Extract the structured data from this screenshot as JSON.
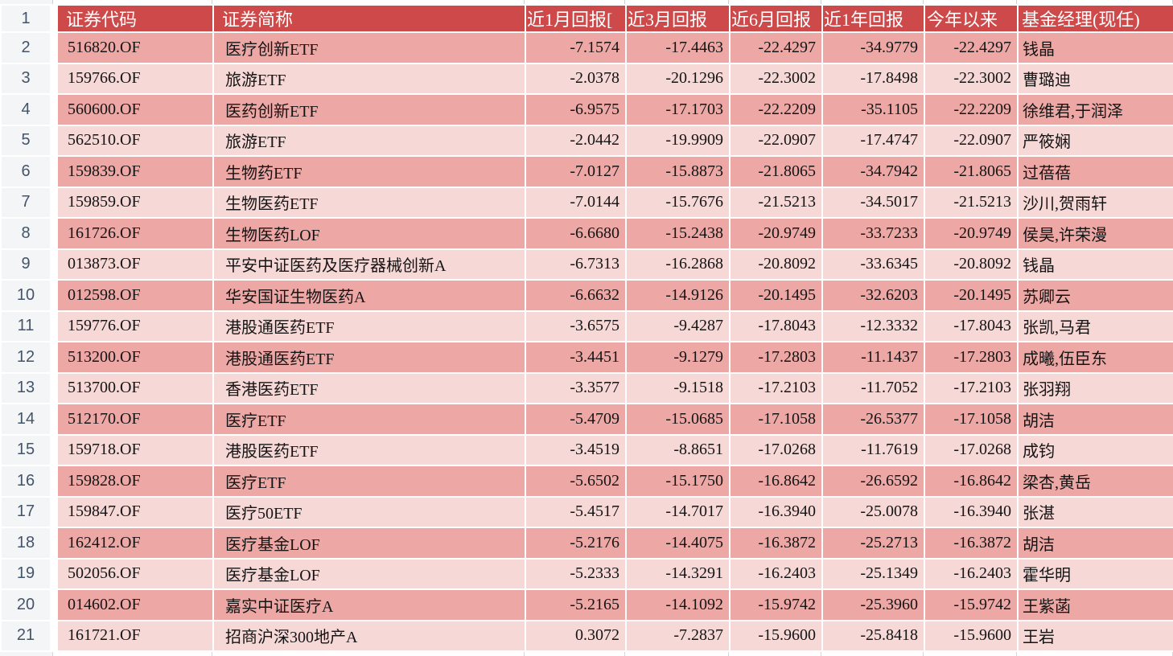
{
  "colors": {
    "header_bg": "#CE4A4A",
    "header_text": "#FFFFFF",
    "row_dark": "#EDA8A6",
    "row_light": "#F6D8D7",
    "rownum_bg": "#F4F5F6",
    "rownum_text": "#44546A",
    "gridline": "#FFFFFF"
  },
  "table": {
    "corner_row_number": "1",
    "columns": [
      {
        "key": "code",
        "label": "证券代码"
      },
      {
        "key": "name",
        "label": "证券简称"
      },
      {
        "key": "r1m",
        "label": "近1月回报["
      },
      {
        "key": "r3m",
        "label": "近3月回报"
      },
      {
        "key": "r6m",
        "label": "近6月回报"
      },
      {
        "key": "r1y",
        "label": "近1年回报"
      },
      {
        "key": "ytd",
        "label": "今年以来"
      },
      {
        "key": "manager",
        "label": "基金经理(现任)"
      }
    ],
    "rows": [
      {
        "row_number": "2",
        "code": "516820.OF",
        "name": "医疗创新ETF",
        "r1m": "-7.1574",
        "r3m": "-17.4463",
        "r6m": "-22.4297",
        "r1y": "-34.9779",
        "ytd": "-22.4297",
        "manager": "钱晶"
      },
      {
        "row_number": "3",
        "code": "159766.OF",
        "name": "旅游ETF",
        "r1m": "-2.0378",
        "r3m": "-20.1296",
        "r6m": "-22.3002",
        "r1y": "-17.8498",
        "ytd": "-22.3002",
        "manager": "曹璐迪"
      },
      {
        "row_number": "4",
        "code": "560600.OF",
        "name": "医药创新ETF",
        "r1m": "-6.9575",
        "r3m": "-17.1703",
        "r6m": "-22.2209",
        "r1y": "-35.1105",
        "ytd": "-22.2209",
        "manager": "徐维君,于润泽"
      },
      {
        "row_number": "5",
        "code": "562510.OF",
        "name": "旅游ETF",
        "r1m": "-2.0442",
        "r3m": "-19.9909",
        "r6m": "-22.0907",
        "r1y": "-17.4747",
        "ytd": "-22.0907",
        "manager": "严筱娴"
      },
      {
        "row_number": "6",
        "code": "159839.OF",
        "name": "生物药ETF",
        "r1m": "-7.0127",
        "r3m": "-15.8873",
        "r6m": "-21.8065",
        "r1y": "-34.7942",
        "ytd": "-21.8065",
        "manager": "过蓓蓓"
      },
      {
        "row_number": "7",
        "code": "159859.OF",
        "name": "生物医药ETF",
        "r1m": "-7.0144",
        "r3m": "-15.7676",
        "r6m": "-21.5213",
        "r1y": "-34.5017",
        "ytd": "-21.5213",
        "manager": "沙川,贺雨轩"
      },
      {
        "row_number": "8",
        "code": "161726.OF",
        "name": "生物医药LOF",
        "r1m": "-6.6680",
        "r3m": "-15.2438",
        "r6m": "-20.9749",
        "r1y": "-33.7233",
        "ytd": "-20.9749",
        "manager": "侯昊,许荣漫"
      },
      {
        "row_number": "9",
        "code": "013873.OF",
        "name": "平安中证医药及医疗器械创新A",
        "r1m": "-6.7313",
        "r3m": "-16.2868",
        "r6m": "-20.8092",
        "r1y": "-33.6345",
        "ytd": "-20.8092",
        "manager": "钱晶"
      },
      {
        "row_number": "10",
        "code": "012598.OF",
        "name": "华安国证生物医药A",
        "r1m": "-6.6632",
        "r3m": "-14.9126",
        "r6m": "-20.1495",
        "r1y": "-32.6203",
        "ytd": "-20.1495",
        "manager": "苏卿云"
      },
      {
        "row_number": "11",
        "code": "159776.OF",
        "name": "港股通医药ETF",
        "r1m": "-3.6575",
        "r3m": "-9.4287",
        "r6m": "-17.8043",
        "r1y": "-12.3332",
        "ytd": "-17.8043",
        "manager": "张凯,马君"
      },
      {
        "row_number": "12",
        "code": "513200.OF",
        "name": "港股通医药ETF",
        "r1m": "-3.4451",
        "r3m": "-9.1279",
        "r6m": "-17.2803",
        "r1y": "-11.1437",
        "ytd": "-17.2803",
        "manager": "成曦,伍臣东"
      },
      {
        "row_number": "13",
        "code": "513700.OF",
        "name": "香港医药ETF",
        "r1m": "-3.3577",
        "r3m": "-9.1518",
        "r6m": "-17.2103",
        "r1y": "-11.7052",
        "ytd": "-17.2103",
        "manager": "张羽翔"
      },
      {
        "row_number": "14",
        "code": "512170.OF",
        "name": "医疗ETF",
        "r1m": "-5.4709",
        "r3m": "-15.0685",
        "r6m": "-17.1058",
        "r1y": "-26.5377",
        "ytd": "-17.1058",
        "manager": "胡洁"
      },
      {
        "row_number": "15",
        "code": "159718.OF",
        "name": "港股医药ETF",
        "r1m": "-3.4519",
        "r3m": "-8.8651",
        "r6m": "-17.0268",
        "r1y": "-11.7619",
        "ytd": "-17.0268",
        "manager": "成钧"
      },
      {
        "row_number": "16",
        "code": "159828.OF",
        "name": "医疗ETF",
        "r1m": "-5.6502",
        "r3m": "-15.1750",
        "r6m": "-16.8642",
        "r1y": "-26.6592",
        "ytd": "-16.8642",
        "manager": "梁杏,黄岳"
      },
      {
        "row_number": "17",
        "code": "159847.OF",
        "name": "医疗50ETF",
        "r1m": "-5.4517",
        "r3m": "-14.7017",
        "r6m": "-16.3940",
        "r1y": "-25.0078",
        "ytd": "-16.3940",
        "manager": "张湛"
      },
      {
        "row_number": "18",
        "code": "162412.OF",
        "name": "医疗基金LOF",
        "r1m": "-5.2176",
        "r3m": "-14.4075",
        "r6m": "-16.3872",
        "r1y": "-25.2713",
        "ytd": "-16.3872",
        "manager": "胡洁"
      },
      {
        "row_number": "19",
        "code": "502056.OF",
        "name": "医疗基金LOF",
        "r1m": "-5.2333",
        "r3m": "-14.3291",
        "r6m": "-16.2403",
        "r1y": "-25.1349",
        "ytd": "-16.2403",
        "manager": "霍华明"
      },
      {
        "row_number": "20",
        "code": "014602.OF",
        "name": "嘉实中证医疗A",
        "r1m": "-5.2165",
        "r3m": "-14.1092",
        "r6m": "-15.9742",
        "r1y": "-25.3960",
        "ytd": "-15.9742",
        "manager": "王紫菡"
      },
      {
        "row_number": "21",
        "code": "161721.OF",
        "name": "招商沪深300地产A",
        "r1m": "0.3072",
        "r3m": "-7.2837",
        "r6m": "-15.9600",
        "r1y": "-25.8418",
        "ytd": "-15.9600",
        "manager": "王岩"
      }
    ]
  }
}
